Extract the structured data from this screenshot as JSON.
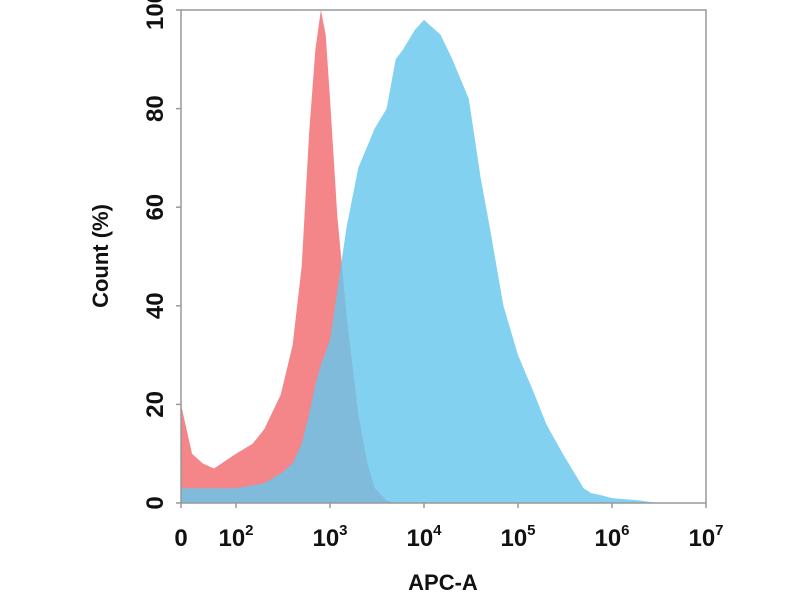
{
  "chart_data": {
    "type": "area",
    "title": "",
    "xlabel": "APC-A",
    "ylabel": "Count  (%)",
    "x_scale": "log",
    "xlim": [
      0,
      10000000
    ],
    "ylim": [
      0,
      100
    ],
    "x_ticks": [
      {
        "base": "0",
        "exp": "",
        "value": 0
      },
      {
        "base": "10",
        "exp": "2",
        "value": 100
      },
      {
        "base": "10",
        "exp": "3",
        "value": 1000
      },
      {
        "base": "10",
        "exp": "4",
        "value": 10000
      },
      {
        "base": "10",
        "exp": "5",
        "value": 100000
      },
      {
        "base": "10",
        "exp": "6",
        "value": 1000000
      },
      {
        "base": "10",
        "exp": "7",
        "value": 10000000
      }
    ],
    "y_ticks": [
      "0",
      "20",
      "40",
      "60",
      "80",
      "100"
    ],
    "grid": false,
    "legend": "none",
    "series": [
      {
        "color": "#f16a6e",
        "x": [
          0,
          20,
          40,
          60,
          100,
          150,
          200,
          300,
          400,
          500,
          600,
          700,
          800,
          900,
          1000,
          1200,
          1500,
          2000,
          2500,
          3000,
          4000,
          5000
        ],
        "y": [
          20,
          10,
          8,
          7,
          10,
          12,
          15,
          22,
          32,
          48,
          75,
          92,
          100,
          95,
          82,
          58,
          38,
          18,
          8,
          3,
          0.5,
          0
        ]
      },
      {
        "color": "#66c7ee",
        "x": [
          0,
          100,
          200,
          300,
          400,
          500,
          600,
          700,
          800,
          1000,
          1500,
          2000,
          3000,
          4000,
          5000,
          6000,
          8000,
          10000,
          15000,
          20000,
          30000,
          40000,
          50000,
          70000,
          100000,
          150000,
          200000,
          300000,
          400000,
          500000,
          600000,
          800000,
          1000000,
          2000000,
          3000000
        ],
        "y": [
          3,
          3,
          4,
          6,
          8,
          12,
          18,
          24,
          28,
          33,
          56,
          68,
          76,
          80,
          90,
          92,
          96,
          98,
          95,
          90,
          82,
          66,
          56,
          40,
          30,
          22,
          16,
          10,
          6,
          3,
          2,
          1.5,
          1,
          0.5,
          0
        ]
      }
    ]
  }
}
